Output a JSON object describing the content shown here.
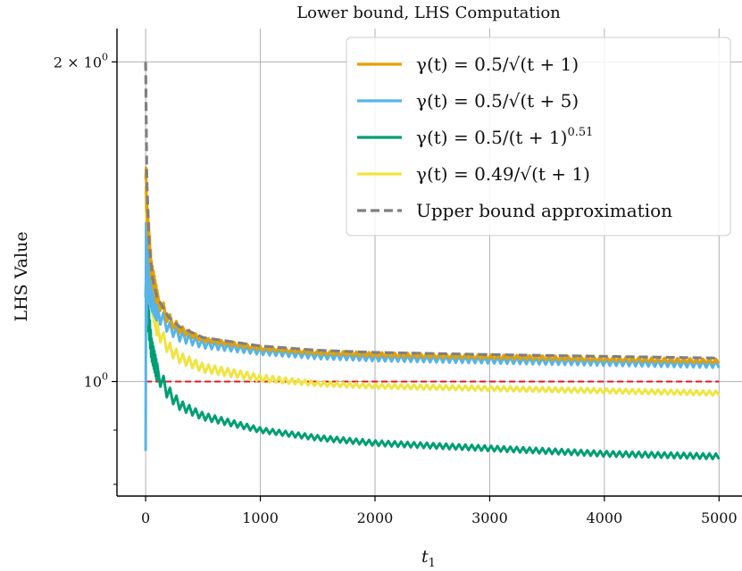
{
  "chart_data": {
    "type": "line",
    "title": "Lower bound, LHS Computation",
    "xlabel": "t",
    "xlabel_subscript": "1",
    "ylabel": "LHS Value",
    "xlim": [
      -250,
      5200
    ],
    "ylim": [
      0.78,
      2.15
    ],
    "yscale": "log",
    "grid": true,
    "legend_position": "top-right",
    "x_ticks": [
      0,
      1000,
      2000,
      3000,
      4000,
      5000
    ],
    "x_tick_labels": [
      "0",
      "1000",
      "2000",
      "3000",
      "4000",
      "5000"
    ],
    "y_tick_labels": [
      {
        "value": 2.0,
        "base": "2 × 10",
        "exp": "0"
      },
      {
        "value": 1.0,
        "base": "10",
        "exp": "0"
      }
    ],
    "y_minor_ticks": [
      0.8,
      0.9
    ],
    "reference_line": {
      "y": 1.0,
      "color": "#e41a1c",
      "style": "dashed"
    },
    "series": [
      {
        "name": "γ(t) = 0.5/√(t + 1)",
        "color": "#E69F00",
        "style": "solid",
        "x": [
          0,
          10,
          50,
          100,
          200,
          300,
          500,
          1000,
          1500,
          2000,
          3000,
          4000,
          5000
        ],
        "y_upper": [
          1.65,
          1.5,
          1.3,
          1.22,
          1.16,
          1.13,
          1.1,
          1.08,
          1.07,
          1.065,
          1.06,
          1.055,
          1.05
        ],
        "y_lower": [
          1.55,
          1.42,
          1.25,
          1.18,
          1.13,
          1.11,
          1.09,
          1.07,
          1.06,
          1.055,
          1.05,
          1.045,
          1.04
        ]
      },
      {
        "name": "γ(t) = 0.5/√(t + 5)",
        "color": "#56B4E9",
        "style": "solid",
        "x": [
          0,
          10,
          50,
          100,
          200,
          300,
          500,
          1000,
          1500,
          2000,
          3000,
          4000,
          5000
        ],
        "y_upper": [
          1.45,
          1.35,
          1.24,
          1.19,
          1.14,
          1.12,
          1.095,
          1.075,
          1.065,
          1.06,
          1.055,
          1.05,
          1.045
        ],
        "y_lower": [
          0.86,
          1.2,
          1.17,
          1.14,
          1.11,
          1.09,
          1.075,
          1.06,
          1.05,
          1.045,
          1.04,
          1.035,
          1.03
        ]
      },
      {
        "name": "γ(t) = 0.5/(t + 1)",
        "name_exp": "0.51",
        "color": "#009E73",
        "style": "solid",
        "x": [
          0,
          10,
          50,
          100,
          200,
          300,
          500,
          1000,
          1500,
          2000,
          3000,
          4000,
          5000
        ],
        "y_upper": [
          1.3,
          1.22,
          1.1,
          1.04,
          0.99,
          0.96,
          0.935,
          0.905,
          0.89,
          0.88,
          0.87,
          0.86,
          0.855
        ],
        "y_lower": [
          1.2,
          1.15,
          1.05,
          1.0,
          0.96,
          0.94,
          0.92,
          0.895,
          0.88,
          0.87,
          0.86,
          0.85,
          0.845
        ]
      },
      {
        "name": "γ(t) = 0.49/√(t + 1)",
        "color": "#F0E442",
        "style": "solid",
        "x": [
          0,
          10,
          50,
          100,
          200,
          300,
          500,
          1000,
          1500,
          2000,
          3000,
          4000,
          5000
        ],
        "y_upper": [
          1.6,
          1.42,
          1.22,
          1.14,
          1.09,
          1.065,
          1.04,
          1.015,
          1.0,
          0.995,
          0.99,
          0.985,
          0.98
        ],
        "y_lower": [
          1.5,
          1.35,
          1.17,
          1.1,
          1.06,
          1.04,
          1.02,
          1.0,
          0.99,
          0.985,
          0.98,
          0.975,
          0.97
        ]
      },
      {
        "name": "Upper bound approximation",
        "color": "#808080",
        "style": "dashed",
        "x": [
          0,
          10,
          30,
          60,
          100,
          200,
          300,
          500,
          1000,
          1500,
          2000,
          3000,
          4000,
          5000
        ],
        "y": [
          2.0,
          1.55,
          1.35,
          1.25,
          1.2,
          1.15,
          1.125,
          1.1,
          1.08,
          1.07,
          1.065,
          1.06,
          1.056,
          1.052
        ]
      }
    ]
  }
}
